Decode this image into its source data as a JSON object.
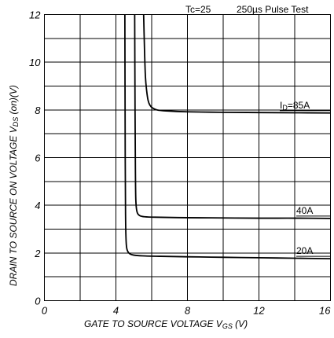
{
  "chart_data": {
    "type": "line",
    "title": "",
    "conditions": [
      "Tc=25",
      "250µs Pulse Test"
    ],
    "xlabel": "GATE TO SOURCE VOLTAGE  V",
    "xlabel_sub": "GS",
    "xlabel_unit": " (V)",
    "ylabel": "DRAIN TO SOURCE ON VOLTAGE  V",
    "ylabel_sub": "DS",
    "ylabel_unit": " (on)(V)",
    "xlim": [
      0,
      16
    ],
    "ylim": [
      0,
      12
    ],
    "x_ticks": [
      0,
      4,
      8,
      12,
      16
    ],
    "y_ticks": [
      0,
      2,
      4,
      6,
      8,
      10,
      12
    ],
    "grid": true,
    "series": [
      {
        "name": "ID=85A",
        "label_prefix": "I",
        "label_sub": "D",
        "label_rest": "=85A",
        "x": [
          5.55,
          5.6,
          5.65,
          5.72,
          5.8,
          5.9,
          6.05,
          6.3,
          6.8,
          8,
          10,
          12,
          14,
          16
        ],
        "y": [
          12,
          10.5,
          9.4,
          8.8,
          8.4,
          8.2,
          8.08,
          8.0,
          7.96,
          7.92,
          7.9,
          7.89,
          7.88,
          7.87
        ]
      },
      {
        "name": "40A",
        "label_prefix": "40A",
        "label_sub": "",
        "label_rest": "",
        "x": [
          5.05,
          5.07,
          5.09,
          5.11,
          5.15,
          5.22,
          5.35,
          5.6,
          6.2,
          8,
          10,
          12,
          14,
          16
        ],
        "y": [
          12,
          8.0,
          5.5,
          4.3,
          3.85,
          3.65,
          3.56,
          3.52,
          3.5,
          3.48,
          3.47,
          3.46,
          3.46,
          3.45
        ]
      },
      {
        "name": "20A",
        "label_prefix": "20A",
        "label_sub": "",
        "label_rest": "",
        "x": [
          4.5,
          4.52,
          4.54,
          4.57,
          4.62,
          4.75,
          5.0,
          5.5,
          6.5,
          8,
          10,
          12,
          14,
          16
        ],
        "y": [
          12,
          6.0,
          3.5,
          2.5,
          2.15,
          1.98,
          1.91,
          1.88,
          1.86,
          1.84,
          1.82,
          1.8,
          1.78,
          1.76
        ]
      }
    ]
  }
}
